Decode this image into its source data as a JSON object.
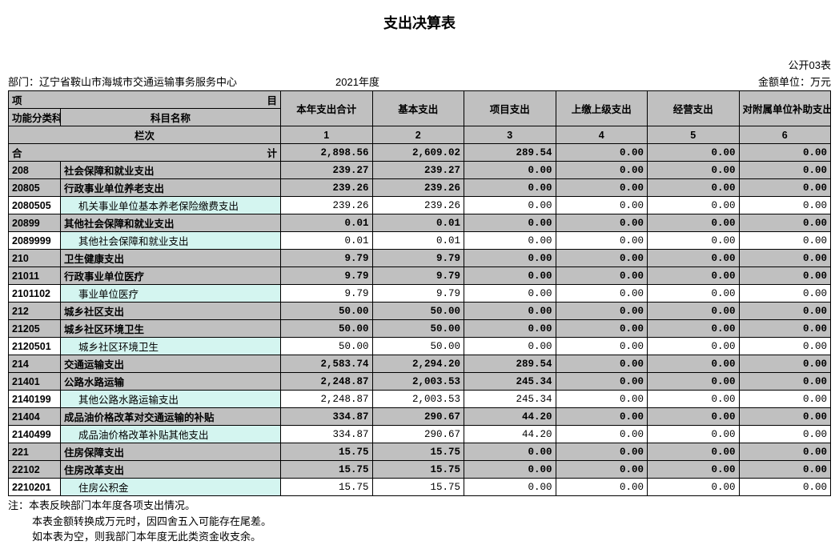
{
  "title": "支出决算表",
  "meta": {
    "dept_label": "部门：",
    "dept_value": "辽宁省鞍山市海城市交通运输事务服务中心",
    "year": "2021年度",
    "form_code": "公开03表",
    "unit": "金额单位：万元"
  },
  "header": {
    "item_label_left": "项",
    "item_label_right": "目",
    "code_col": "功能分类科目编码",
    "name_col": "科目名称",
    "cols": [
      "本年支出合计",
      "基本支出",
      "项目支出",
      "上缴上级支出",
      "经营支出",
      "对附属单位补助支出"
    ],
    "lane_label": "栏次",
    "lane_nums": [
      "1",
      "2",
      "3",
      "4",
      "5",
      "6"
    ],
    "total_label_left": "合",
    "total_label_right": "计"
  },
  "rows": [
    {
      "style": "gray",
      "code": "",
      "name": "",
      "vals": [
        "2,898.56",
        "2,609.02",
        "289.54",
        "0.00",
        "0.00",
        "0.00"
      ],
      "is_total": true
    },
    {
      "style": "gray",
      "code": "208",
      "name": "社会保障和就业支出",
      "vals": [
        "239.27",
        "239.27",
        "0.00",
        "0.00",
        "0.00",
        "0.00"
      ]
    },
    {
      "style": "gray",
      "code": "20805",
      "name": "行政事业单位养老支出",
      "vals": [
        "239.26",
        "239.26",
        "0.00",
        "0.00",
        "0.00",
        "0.00"
      ]
    },
    {
      "style": "cyan",
      "code": "2080505",
      "name": "机关事业单位基本养老保险缴费支出",
      "indent": true,
      "vals": [
        "239.26",
        "239.26",
        "0.00",
        "0.00",
        "0.00",
        "0.00"
      ]
    },
    {
      "style": "gray",
      "code": "20899",
      "name": "其他社会保障和就业支出",
      "vals": [
        "0.01",
        "0.01",
        "0.00",
        "0.00",
        "0.00",
        "0.00"
      ]
    },
    {
      "style": "cyan",
      "code": "2089999",
      "name": "其他社会保障和就业支出",
      "indent": true,
      "vals": [
        "0.01",
        "0.01",
        "0.00",
        "0.00",
        "0.00",
        "0.00"
      ]
    },
    {
      "style": "gray",
      "code": "210",
      "name": "卫生健康支出",
      "vals": [
        "9.79",
        "9.79",
        "0.00",
        "0.00",
        "0.00",
        "0.00"
      ]
    },
    {
      "style": "gray",
      "code": "21011",
      "name": "行政事业单位医疗",
      "vals": [
        "9.79",
        "9.79",
        "0.00",
        "0.00",
        "0.00",
        "0.00"
      ]
    },
    {
      "style": "cyan",
      "code": "2101102",
      "name": "事业单位医疗",
      "indent": true,
      "vals": [
        "9.79",
        "9.79",
        "0.00",
        "0.00",
        "0.00",
        "0.00"
      ]
    },
    {
      "style": "gray",
      "code": "212",
      "name": "城乡社区支出",
      "vals": [
        "50.00",
        "50.00",
        "0.00",
        "0.00",
        "0.00",
        "0.00"
      ]
    },
    {
      "style": "gray",
      "code": "21205",
      "name": "城乡社区环境卫生",
      "vals": [
        "50.00",
        "50.00",
        "0.00",
        "0.00",
        "0.00",
        "0.00"
      ]
    },
    {
      "style": "cyan",
      "code": "2120501",
      "name": "城乡社区环境卫生",
      "indent": true,
      "vals": [
        "50.00",
        "50.00",
        "0.00",
        "0.00",
        "0.00",
        "0.00"
      ]
    },
    {
      "style": "gray",
      "code": "214",
      "name": "交通运输支出",
      "vals": [
        "2,583.74",
        "2,294.20",
        "289.54",
        "0.00",
        "0.00",
        "0.00"
      ]
    },
    {
      "style": "gray",
      "code": "21401",
      "name": "公路水路运输",
      "vals": [
        "2,248.87",
        "2,003.53",
        "245.34",
        "0.00",
        "0.00",
        "0.00"
      ]
    },
    {
      "style": "cyan",
      "code": "2140199",
      "name": "其他公路水路运输支出",
      "indent": true,
      "vals": [
        "2,248.87",
        "2,003.53",
        "245.34",
        "0.00",
        "0.00",
        "0.00"
      ]
    },
    {
      "style": "gray",
      "code": "21404",
      "name": "成品油价格改革对交通运输的补贴",
      "vals": [
        "334.87",
        "290.67",
        "44.20",
        "0.00",
        "0.00",
        "0.00"
      ]
    },
    {
      "style": "cyan",
      "code": "2140499",
      "name": "成品油价格改革补贴其他支出",
      "indent": true,
      "vals": [
        "334.87",
        "290.67",
        "44.20",
        "0.00",
        "0.00",
        "0.00"
      ]
    },
    {
      "style": "gray",
      "code": "221",
      "name": "住房保障支出",
      "vals": [
        "15.75",
        "15.75",
        "0.00",
        "0.00",
        "0.00",
        "0.00"
      ]
    },
    {
      "style": "gray",
      "code": "22102",
      "name": "住房改革支出",
      "vals": [
        "15.75",
        "15.75",
        "0.00",
        "0.00",
        "0.00",
        "0.00"
      ]
    },
    {
      "style": "cyan",
      "code": "2210201",
      "name": "住房公积金",
      "indent": true,
      "vals": [
        "15.75",
        "15.75",
        "0.00",
        "0.00",
        "0.00",
        "0.00"
      ]
    }
  ],
  "notes": {
    "n1": "注：本表反映部门本年度各项支出情况。",
    "n2": "本表金额转换成万元时，因四舍五入可能存在尾差。",
    "n3": "如本表为空，则我部门本年度无此类资金收支余。"
  },
  "colors": {
    "gray": "#c0c0c0",
    "cyan": "#d4f5f0",
    "border": "#000000",
    "bg": "#ffffff"
  }
}
